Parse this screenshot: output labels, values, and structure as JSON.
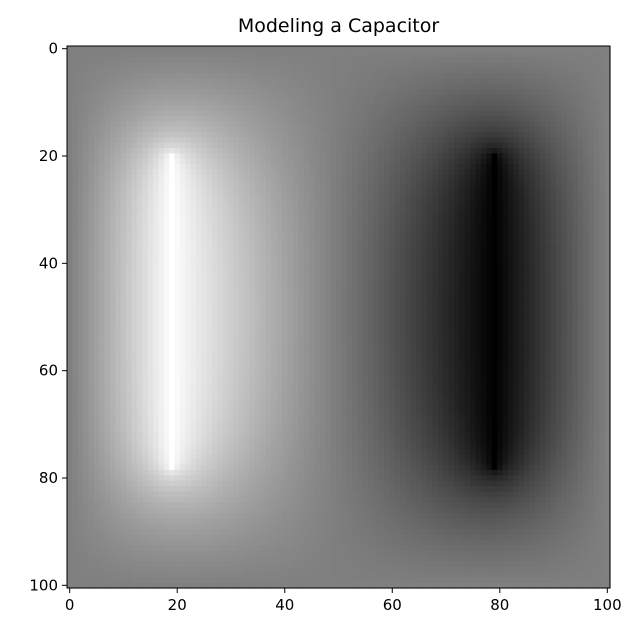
{
  "chart_data": {
    "type": "heatmap",
    "title": "Modeling a Capacitor",
    "xlabel": "",
    "ylabel": "",
    "colormap": "gray",
    "grid": false,
    "x_range": [
      0,
      101
    ],
    "y_range": [
      0,
      101
    ],
    "y_inverted": true,
    "xticks": [
      0,
      20,
      40,
      60,
      80,
      100
    ],
    "yticks": [
      0,
      20,
      40,
      60,
      80,
      100
    ],
    "plates": [
      {
        "x": 19,
        "y_start": 20,
        "y_end": 79,
        "potential": 1
      },
      {
        "x": 79,
        "y_start": 20,
        "y_end": 79,
        "potential": -1
      }
    ],
    "value_range": [
      -1,
      1
    ]
  }
}
